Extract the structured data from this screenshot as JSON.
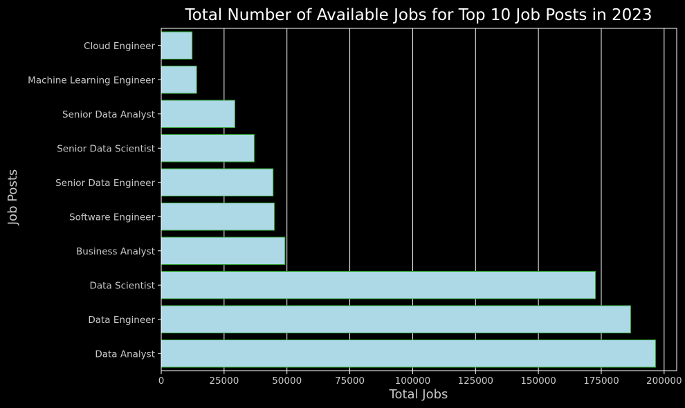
{
  "chart_data": {
    "type": "bar",
    "orientation": "horizontal",
    "title": "Total Number of Available Jobs for Top 10 Job Posts in 2023",
    "xlabel": "Total Jobs",
    "ylabel": "Job Posts",
    "xlim": [
      0,
      205000
    ],
    "xticks": [
      0,
      25000,
      50000,
      75000,
      100000,
      125000,
      150000,
      175000,
      200000
    ],
    "xtick_labels": [
      "0",
      "25000",
      "50000",
      "75000",
      "100000",
      "125000",
      "150000",
      "175000",
      "200000"
    ],
    "categories": [
      "Data Analyst",
      "Data Engineer",
      "Data Scientist",
      "Business Analyst",
      "Software Engineer",
      "Senior Data Engineer",
      "Senior Data Scientist",
      "Senior Data Analyst",
      "Machine Learning Engineer",
      "Cloud Engineer"
    ],
    "values": [
      196600,
      186700,
      172700,
      49200,
      45000,
      44500,
      37000,
      29300,
      14100,
      12300
    ],
    "grid": "vertical",
    "colors": {
      "background": "#000000",
      "bar_fill": "#add8e6",
      "bar_edge": "#2ca02c",
      "grid": "#ffffff",
      "spine": "#ffffff",
      "text": "#c8c8c8",
      "title": "#ffffff"
    }
  }
}
